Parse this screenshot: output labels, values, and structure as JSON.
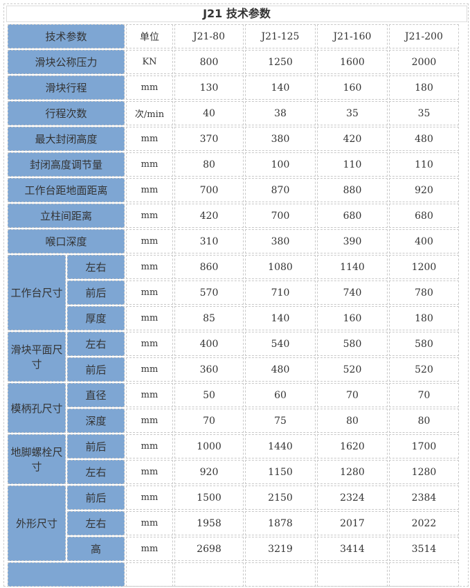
{
  "title": "J21 技术参数",
  "header": [
    "技术参数",
    "单位",
    "J21-80",
    "J21-125",
    "J21-160",
    "J21-200"
  ],
  "rows": [
    {
      "label": "滑块公称压力",
      "unit": "KN",
      "values": [
        "800",
        "1250",
        "1600",
        "2000"
      ]
    },
    {
      "label": "滑块行程",
      "unit": "mm",
      "values": [
        "130",
        "140",
        "160",
        "180"
      ]
    },
    {
      "label": "行程次数",
      "unit": "次/min",
      "values": [
        "40",
        "38",
        "35",
        "35"
      ]
    },
    {
      "label": "最大封闭高度",
      "unit": "mm",
      "values": [
        "370",
        "380",
        "420",
        "480"
      ]
    },
    {
      "label": "封闭高度调节量",
      "unit": "mm",
      "values": [
        "80",
        "100",
        "110",
        "110"
      ]
    },
    {
      "label": "工作台距地面距离",
      "unit": "mm",
      "values": [
        "700",
        "870",
        "880",
        "920"
      ]
    },
    {
      "label": "立柱间距离",
      "unit": "mm",
      "values": [
        "420",
        "700",
        "680",
        "680"
      ]
    },
    {
      "label": "喉口深度",
      "unit": "mm",
      "values": [
        "310",
        "380",
        "390",
        "400"
      ]
    }
  ],
  "groups": [
    {
      "label": "工作台尺寸",
      "rows": [
        {
          "label": "左右",
          "unit": "mm",
          "values": [
            "860",
            "1080",
            "1140",
            "1200"
          ]
        },
        {
          "label": "前后",
          "unit": "mm",
          "values": [
            "570",
            "710",
            "740",
            "780"
          ]
        },
        {
          "label": "厚度",
          "unit": "mm",
          "values": [
            "85",
            "140",
            "160",
            "180"
          ]
        }
      ]
    },
    {
      "label": "滑块平面尺寸",
      "rows": [
        {
          "label": "左右",
          "unit": "mm",
          "values": [
            "400",
            "540",
            "580",
            "580"
          ]
        },
        {
          "label": "前后",
          "unit": "mm",
          "values": [
            "360",
            "480",
            "520",
            "520"
          ]
        }
      ]
    },
    {
      "label": "模柄孔尺寸",
      "rows": [
        {
          "label": "直径",
          "unit": "mm",
          "values": [
            "50",
            "60",
            "70",
            "70"
          ]
        },
        {
          "label": "深度",
          "unit": "mm",
          "values": [
            "70",
            "75",
            "80",
            "80"
          ]
        }
      ]
    },
    {
      "label": "地脚螺栓尺寸",
      "rows": [
        {
          "label": "前后",
          "unit": "mm",
          "values": [
            "1000",
            "1440",
            "1620",
            "1700"
          ]
        },
        {
          "label": "左右",
          "unit": "mm",
          "values": [
            "920",
            "1150",
            "1280",
            "1280"
          ]
        }
      ]
    },
    {
      "label": "外形尺寸",
      "rows": [
        {
          "label": "前后",
          "unit": "mm",
          "values": [
            "1500",
            "2150",
            "2324",
            "2384"
          ]
        },
        {
          "label": "左右",
          "unit": "mm",
          "values": [
            "1958",
            "1878",
            "2017",
            "2022"
          ]
        },
        {
          "label": "高",
          "unit": "mm",
          "values": [
            "2698",
            "3219",
            "3414",
            "3514"
          ]
        }
      ]
    }
  ],
  "colors": {
    "label_bg": "#7ea6d3",
    "border": "#c8c8c8"
  }
}
